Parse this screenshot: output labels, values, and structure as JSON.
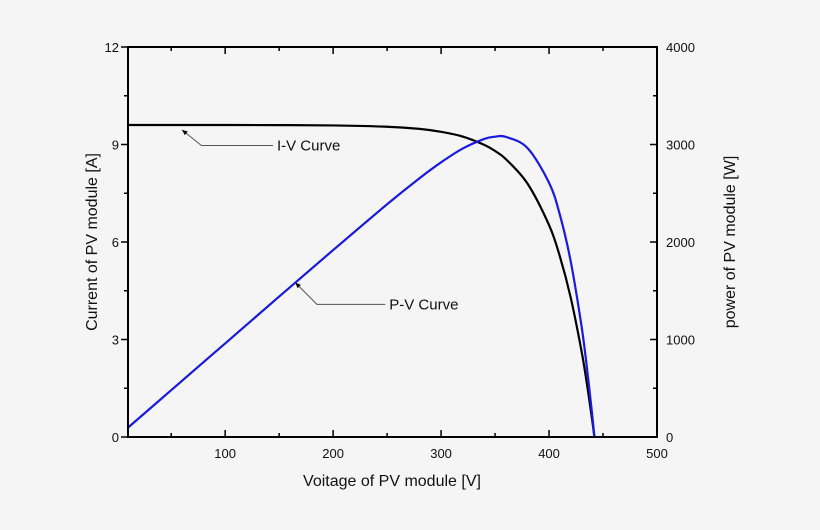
{
  "chart_data": {
    "type": "line",
    "title": "",
    "xlabel": "Voitage of PV module [V]",
    "ylabel": "Current of PV module [A]",
    "y2label": "power of PV module [W]",
    "xlim": [
      10,
      500
    ],
    "ylim": [
      0,
      12
    ],
    "y2lim": [
      0,
      4000
    ],
    "xticks": [
      100,
      200,
      300,
      400,
      500
    ],
    "yticks": [
      0,
      3,
      6,
      9,
      12
    ],
    "y2ticks": [
      0,
      1000,
      2000,
      3000,
      4000
    ],
    "grid": false,
    "series": [
      {
        "name": "I-V Curve",
        "axis": "left",
        "color": "#000000",
        "x": [
          10,
          50,
          100,
          150,
          200,
          250,
          280,
          300,
          320,
          340,
          350,
          360,
          380,
          400,
          410,
          420,
          430,
          435,
          440,
          442
        ],
        "y": [
          9.6,
          9.6,
          9.6,
          9.597,
          9.586,
          9.546,
          9.48,
          9.39,
          9.245,
          8.99,
          8.8,
          8.55,
          7.8,
          6.52,
          5.56,
          4.3,
          2.66,
          1.65,
          0.51,
          0
        ]
      },
      {
        "name": "P-V Curve",
        "axis": "right",
        "color": "#1a1adf",
        "x": [
          10,
          50,
          100,
          150,
          200,
          250,
          280,
          300,
          320,
          340,
          350,
          360,
          380,
          400,
          410,
          420,
          430,
          435,
          440,
          442
        ],
        "y": [
          96,
          480,
          960,
          1440,
          1917,
          2387,
          2654,
          2817,
          2958,
          3057,
          3080,
          3078,
          2964,
          2608,
          2280,
          1806,
          1144,
          718,
          224,
          0
        ]
      }
    ],
    "annotations": [
      {
        "text": "I-V Curve",
        "text_at": [
          148,
          8.97
        ],
        "elbow": [
          78,
          8.97
        ],
        "arrow_to": [
          60,
          9.45
        ]
      },
      {
        "text": "P-V Curve",
        "text_at": [
          252,
          4.08
        ],
        "elbow": [
          185,
          4.08
        ],
        "arrow_to": [
          165,
          4.75
        ]
      }
    ]
  }
}
